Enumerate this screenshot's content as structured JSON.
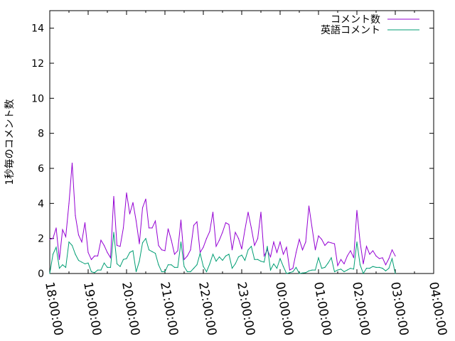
{
  "chart_data": {
    "type": "line",
    "title": "",
    "xlabel": "",
    "ylabel": "1秒毎のコメント数",
    "xlim": [
      "18:00:00",
      "04:00:00"
    ],
    "ylim": [
      0,
      15
    ],
    "x_ticks": [
      "18:00:00",
      "19:00:00",
      "20:00:00",
      "21:00:00",
      "22:00:00",
      "23:00:00",
      "00:00:00",
      "01:00:00",
      "02:00:00",
      "03:00:00",
      "04:00:00"
    ],
    "y_ticks": [
      "0",
      "2",
      "4",
      "6",
      "8",
      "10",
      "12",
      "14"
    ],
    "grid": false,
    "legend_position": "top-right",
    "x": [
      "18:00",
      "18:05",
      "18:10",
      "18:15",
      "18:20",
      "18:25",
      "18:30",
      "18:35",
      "18:40",
      "18:45",
      "18:50",
      "18:55",
      "19:00",
      "19:05",
      "19:10",
      "19:15",
      "19:20",
      "19:25",
      "19:30",
      "19:35",
      "19:40",
      "19:45",
      "19:50",
      "19:55",
      "20:00",
      "20:05",
      "20:10",
      "20:15",
      "20:20",
      "20:25",
      "20:30",
      "20:35",
      "20:40",
      "20:45",
      "20:50",
      "20:55",
      "21:00",
      "21:05",
      "21:10",
      "21:15",
      "21:20",
      "21:25",
      "21:30",
      "21:35",
      "21:40",
      "21:45",
      "21:50",
      "21:55",
      "22:00",
      "22:05",
      "22:10",
      "22:15",
      "22:20",
      "22:25",
      "22:30",
      "22:35",
      "22:40",
      "22:45",
      "22:50",
      "22:55",
      "23:00",
      "23:05",
      "23:10",
      "23:15",
      "23:20",
      "23:25",
      "23:30",
      "23:35",
      "23:40",
      "23:45",
      "23:50",
      "23:55",
      "00:00",
      "00:05",
      "00:10",
      "00:15",
      "00:20",
      "00:25",
      "00:30",
      "00:35",
      "00:40",
      "00:45",
      "00:50",
      "00:55",
      "01:00",
      "01:05",
      "01:10",
      "01:15",
      "01:20",
      "01:25",
      "01:30",
      "01:35",
      "01:40",
      "01:45",
      "01:50",
      "01:55",
      "02:00",
      "02:05",
      "02:10",
      "02:15",
      "02:20",
      "02:25",
      "02:30",
      "02:35",
      "02:40",
      "02:45",
      "02:50",
      "02:55",
      "03:00"
    ],
    "series": [
      {
        "name": "コメント数",
        "color": "#9400d3",
        "values": [
          1.95,
          2.0,
          2.6,
          0.8,
          2.5,
          2.1,
          4.0,
          6.3,
          3.3,
          2.2,
          1.8,
          2.9,
          1.2,
          0.8,
          1.0,
          1.0,
          1.9,
          1.6,
          1.2,
          0.9,
          4.4,
          1.6,
          1.55,
          2.6,
          4.6,
          3.4,
          4.05,
          3.0,
          1.7,
          3.75,
          4.25,
          2.6,
          2.6,
          3.0,
          1.6,
          1.35,
          1.3,
          2.55,
          1.9,
          1.1,
          1.3,
          3.05,
          0.8,
          1.0,
          1.35,
          2.75,
          2.95,
          1.2,
          1.5,
          2.0,
          2.4,
          3.5,
          1.55,
          1.9,
          2.35,
          2.9,
          2.8,
          1.35,
          2.35,
          2.0,
          1.4,
          2.5,
          3.5,
          2.6,
          1.6,
          2.0,
          3.5,
          1.0,
          1.35,
          0.95,
          1.8,
          1.2,
          1.8,
          1.1,
          1.5,
          0.2,
          0.3,
          1.2,
          1.95,
          1.35,
          1.8,
          3.85,
          2.6,
          1.35,
          2.15,
          1.95,
          1.6,
          1.8,
          1.75,
          1.7,
          0.45,
          0.8,
          0.55,
          1.0,
          1.3,
          0.9,
          3.6,
          1.8,
          0.55,
          1.55,
          1.1,
          1.3,
          1.0,
          0.85,
          0.9,
          0.5,
          0.85,
          1.35,
          1.0
        ]
      },
      {
        "name": "英語コメント",
        "color": "#009e73",
        "values": [
          0,
          1.1,
          1.5,
          0.3,
          0.5,
          0.35,
          1.8,
          1.6,
          1.1,
          0.75,
          0.65,
          0.55,
          0.6,
          0.1,
          0.05,
          0.2,
          0.2,
          0.6,
          0.35,
          0.35,
          2.35,
          0.55,
          0.4,
          0.8,
          0.85,
          1.2,
          1.3,
          0.1,
          0.7,
          1.75,
          2.0,
          1.35,
          1.25,
          1.15,
          0.5,
          0.1,
          0.1,
          0.5,
          0.5,
          0.35,
          0.35,
          1.8,
          0.4,
          0.1,
          0.1,
          0.3,
          0.5,
          1.15,
          0.4,
          0.1,
          0.55,
          1.1,
          0.7,
          0.95,
          0.75,
          1.0,
          1.1,
          0.3,
          0.55,
          0.95,
          1.05,
          0.75,
          1.35,
          1.55,
          0.8,
          0.8,
          0.7,
          0.65,
          1.55,
          0.2,
          0.55,
          0.3,
          0.85,
          0.4,
          0,
          0.05,
          0.1,
          0.35,
          0,
          0.03,
          0.05,
          0.15,
          0.2,
          0.2,
          0.9,
          0.3,
          0.35,
          0.6,
          0.9,
          0.1,
          0.2,
          0.25,
          0.1,
          0.2,
          0.3,
          0.25,
          1.8,
          0.5,
          0,
          0.3,
          0.3,
          0.4,
          0.35,
          0.35,
          0.3,
          0.15,
          0.3,
          0.85,
          0
        ]
      }
    ]
  }
}
